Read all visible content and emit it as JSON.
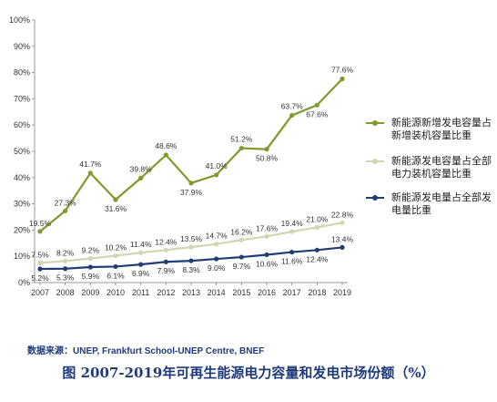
{
  "chart_data": {
    "type": "line",
    "categories": [
      "2007",
      "2008",
      "2009",
      "2010",
      "2011",
      "2012",
      "2013",
      "2014",
      "2015",
      "2016",
      "2017",
      "2018",
      "2019"
    ],
    "ylim": [
      0,
      100
    ],
    "yticks": [
      "0%",
      "10%",
      "20%",
      "30%",
      "40%",
      "50%",
      "60%",
      "70%",
      "80%",
      "90%",
      "100%"
    ],
    "grid": false,
    "legend_position": "right",
    "series": [
      {
        "name": "新能源新增发电容量占新增装机容量比重",
        "color": "#7f9a2e",
        "values": [
          19.5,
          27.3,
          41.7,
          31.6,
          39.8,
          48.6,
          37.9,
          41.0,
          51.2,
          50.8,
          63.7,
          67.6,
          77.6
        ],
        "labels": [
          "19.5%",
          "27.3%",
          "41.7%",
          "31.6%",
          "39.8%",
          "48.6%",
          "37.9%",
          "41.0%",
          "51.2%",
          "50.8%",
          "63.7%",
          "67.6%",
          "77.6%"
        ]
      },
      {
        "name": "新能源发电容量占全部电力装机容量比重",
        "color": "#d2d6b0",
        "values": [
          7.5,
          8.2,
          9.2,
          10.2,
          11.4,
          12.4,
          13.5,
          14.7,
          16.2,
          17.6,
          19.4,
          21.0,
          22.8
        ],
        "labels": [
          "7.5%",
          "8.2%",
          "9.2%",
          "10.2%",
          "11.4%",
          "12.4%",
          "13.5%",
          "14.7%",
          "16.2%",
          "17.6%",
          "19.4%",
          "21.0%",
          "22.8%"
        ]
      },
      {
        "name": "新能源发电量占全部发电量比重",
        "color": "#1f3f73",
        "values": [
          5.2,
          5.3,
          5.9,
          6.1,
          6.9,
          7.9,
          8.3,
          9.0,
          9.7,
          10.6,
          11.6,
          12.4,
          13.4
        ],
        "labels": [
          "5.2%",
          "5.3%",
          "5.9%",
          "6.1%",
          "6.9%",
          "7.9%",
          "8.3%",
          "9.0%",
          "9.7%",
          "10.6%",
          "11.6%",
          "12.4%",
          "13.4%"
        ]
      }
    ],
    "source": "数据来源：UNEP, Frankfurt School-UNEP Centre, BNEF",
    "caption": "图 2007-2019年可再生能源电力容量和发电市场份额（%）"
  }
}
